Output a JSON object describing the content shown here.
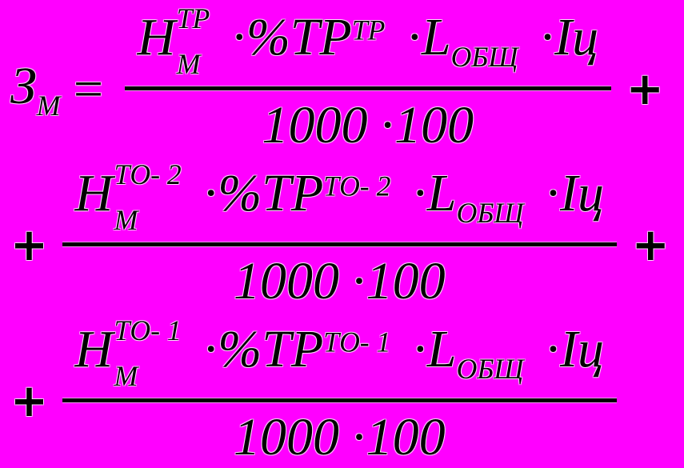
{
  "colors": {
    "background": "#FF00FF",
    "ink": "#000000"
  },
  "formula": {
    "lhs_base": "З",
    "lhs_sub": "М",
    "equals_sign": "=",
    "plus_sign": "+",
    "terms": [
      {
        "h_base": "Н",
        "h_sup": "ТР",
        "h_sub": "М",
        "mul1": "·",
        "pct_base": "%ТР",
        "pct_sup": "ТР",
        "mul2": "·",
        "l_base": "L",
        "l_sub": "ОБЩ",
        "mul3": "·",
        "cycle": "Iц",
        "den_left": "1000",
        "den_mul": "·",
        "den_right": "100"
      },
      {
        "h_base": "Н",
        "h_sup": "ТО- 2",
        "h_sub": "М",
        "mul1": "·",
        "pct_base": "%ТР",
        "pct_sup": "ТО- 2",
        "mul2": "·",
        "l_base": "L",
        "l_sub": "ОБЩ",
        "mul3": "·",
        "cycle": "Iц",
        "den_left": "1000",
        "den_mul": "·",
        "den_right": "100"
      },
      {
        "h_base": "Н",
        "h_sup": "ТО- 1",
        "h_sub": "М",
        "mul1": "·",
        "pct_base": "%ТР",
        "pct_sup": "ТО- 1",
        "mul2": "·",
        "l_base": "L",
        "l_sub": "ОБЩ",
        "mul3": "·",
        "cycle": "Iц",
        "den_left": "1000",
        "den_mul": "·",
        "den_right": "100"
      }
    ]
  }
}
